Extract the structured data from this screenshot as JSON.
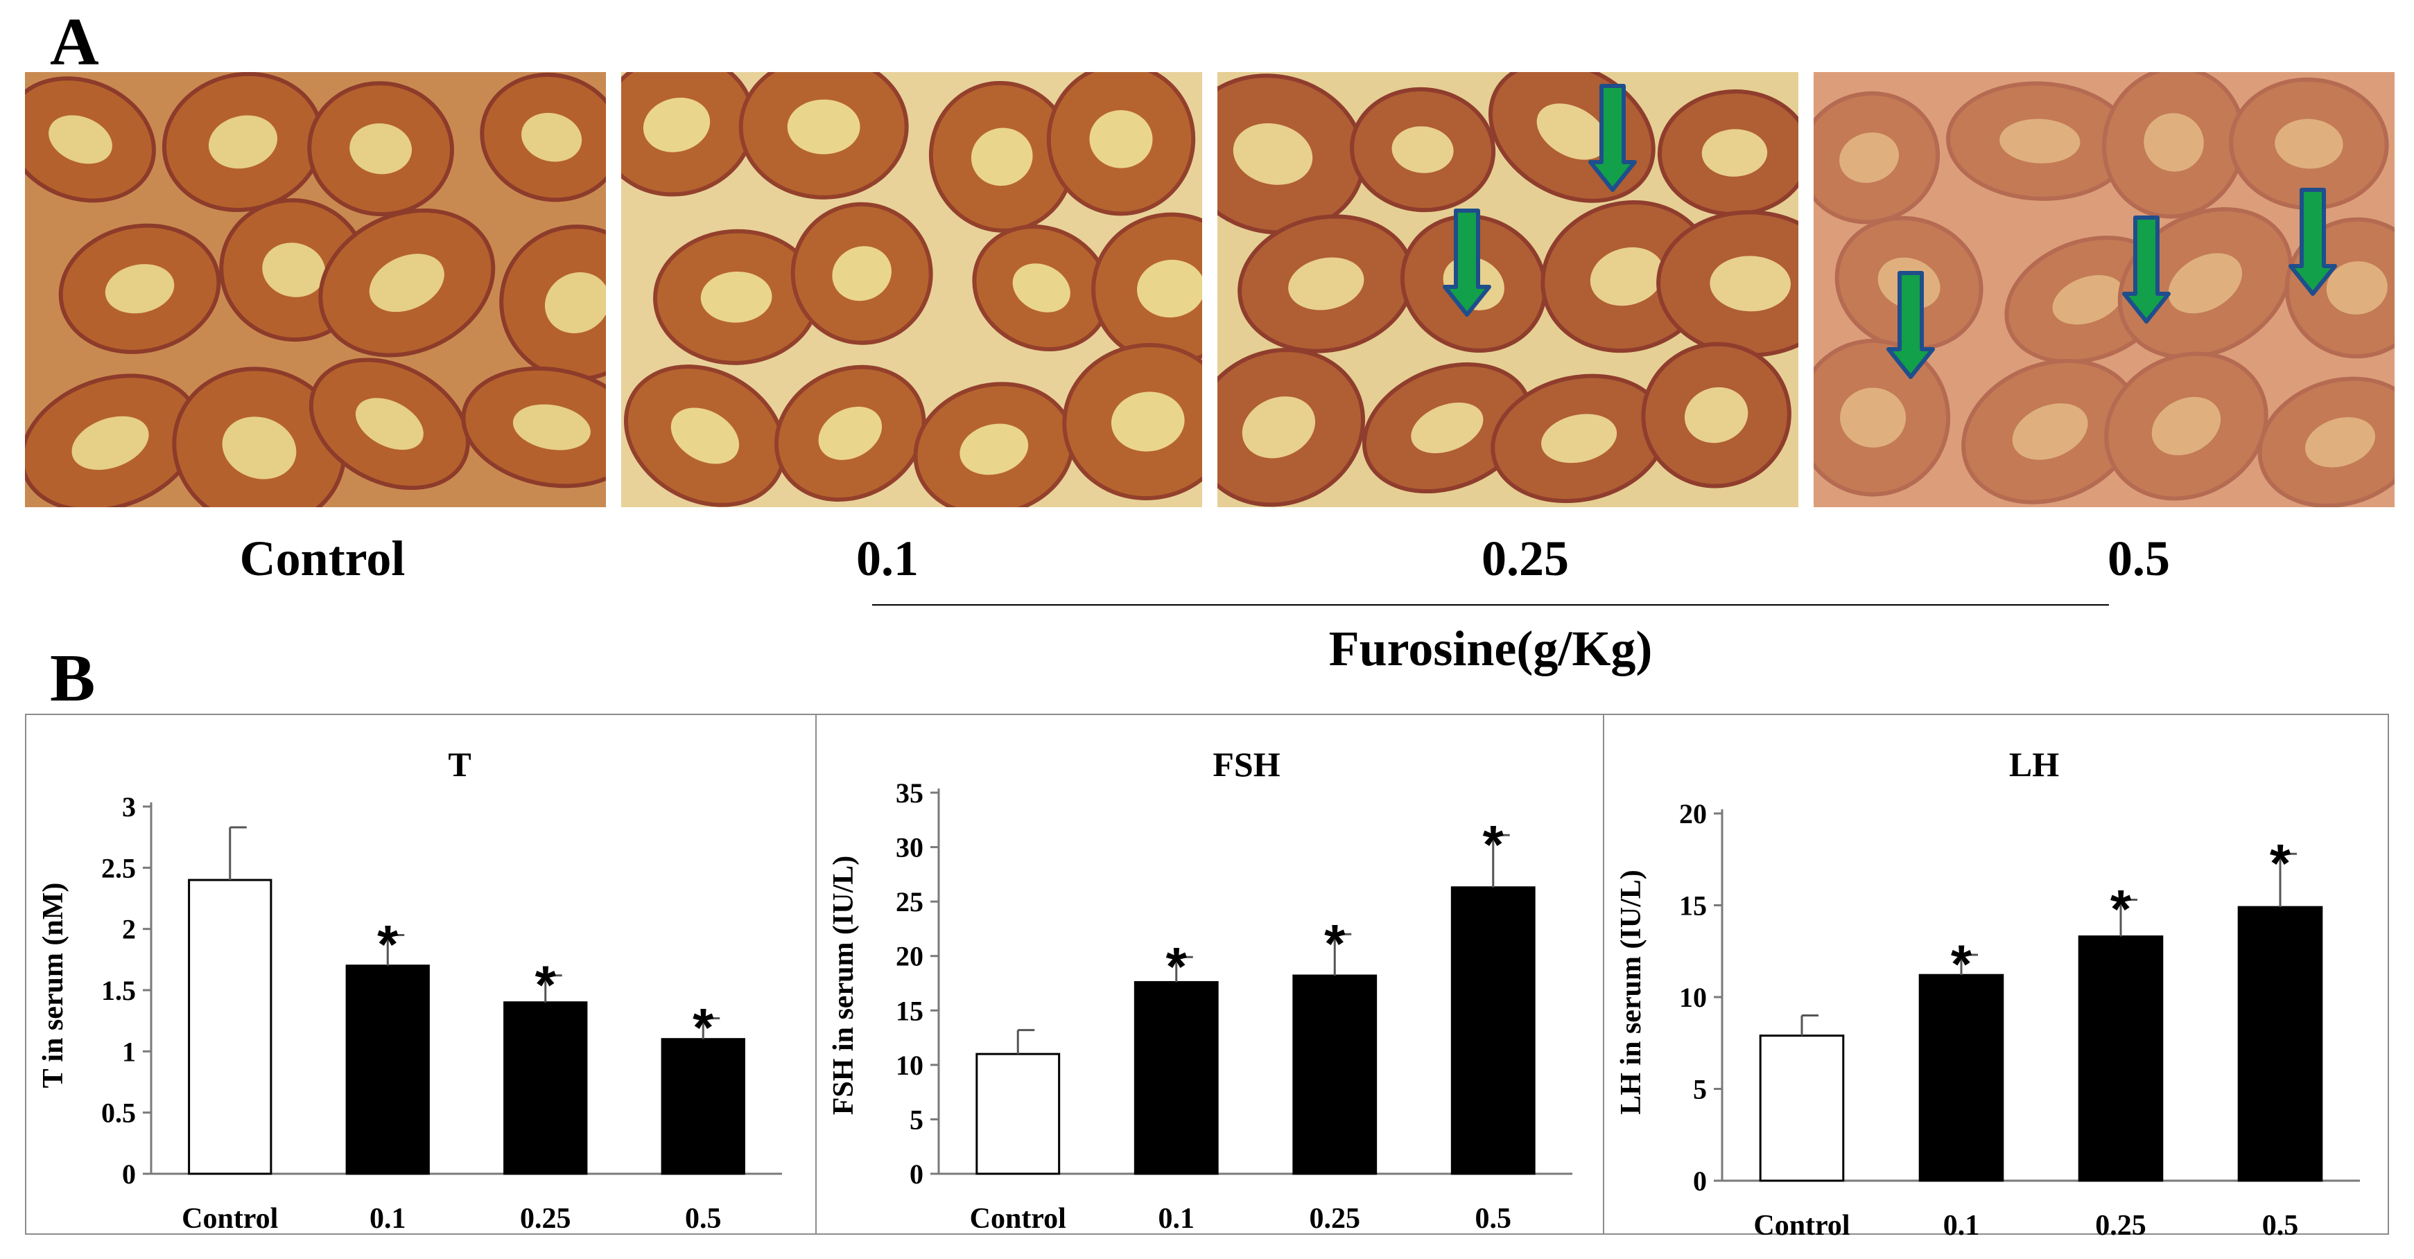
{
  "panelA": {
    "letter": "A",
    "images": [
      {
        "caption": "Control",
        "arrows": 0
      },
      {
        "caption": "0.1",
        "arrows": 0
      },
      {
        "caption": "0.25",
        "arrows": 2
      },
      {
        "caption": "0.5",
        "arrows": 3
      }
    ],
    "group_label": "Furosine(g/Kg)",
    "arrow_color": "#12a04a"
  },
  "panelB": {
    "letter": "B",
    "group_label": "Furosine(g/Kg)"
  },
  "chart_data": [
    {
      "type": "bar",
      "title": "T",
      "ylabel": "T in serum (nM)",
      "categories": [
        "Control",
        "0.1",
        "0.25",
        "0.5"
      ],
      "values": [
        2.4,
        1.7,
        1.4,
        1.1
      ],
      "errors": [
        0.43,
        0.25,
        0.22,
        0.17
      ],
      "significant": [
        false,
        true,
        true,
        true
      ],
      "ylim": [
        0,
        3
      ],
      "yticks": [
        "0",
        "0.5",
        "1",
        "1.5",
        "2",
        "2.5",
        "3"
      ],
      "group_label": "Furosine(g/Kg)",
      "star": "*"
    },
    {
      "type": "bar",
      "title": "FSH",
      "ylabel": "FSH in serum (IU/L)",
      "categories": [
        "Control",
        "0.1",
        "0.25",
        "0.5"
      ],
      "values": [
        11,
        17.6,
        18.2,
        26.3
      ],
      "errors": [
        2.2,
        2.3,
        3.8,
        4.8
      ],
      "significant": [
        false,
        true,
        true,
        true
      ],
      "ylim": [
        0,
        35
      ],
      "yticks": [
        "0",
        "5",
        "10",
        "15",
        "20",
        "25",
        "30",
        "35"
      ],
      "group_label": "Furosine(g/Kg)",
      "star": "*"
    },
    {
      "type": "bar",
      "title": "LH",
      "ylabel": "LH in serum (IU/L)",
      "categories": [
        "Control",
        "0.1",
        "0.25",
        "0.5"
      ],
      "values": [
        7.9,
        11.2,
        13.3,
        14.9
      ],
      "errors": [
        1.1,
        1.1,
        2.0,
        2.9
      ],
      "significant": [
        false,
        true,
        true,
        true
      ],
      "ylim": [
        0,
        20
      ],
      "yticks": [
        "0",
        "5",
        "10",
        "15",
        "20"
      ],
      "group_label": "Furosine(g/Kg)",
      "star": "*"
    }
  ]
}
